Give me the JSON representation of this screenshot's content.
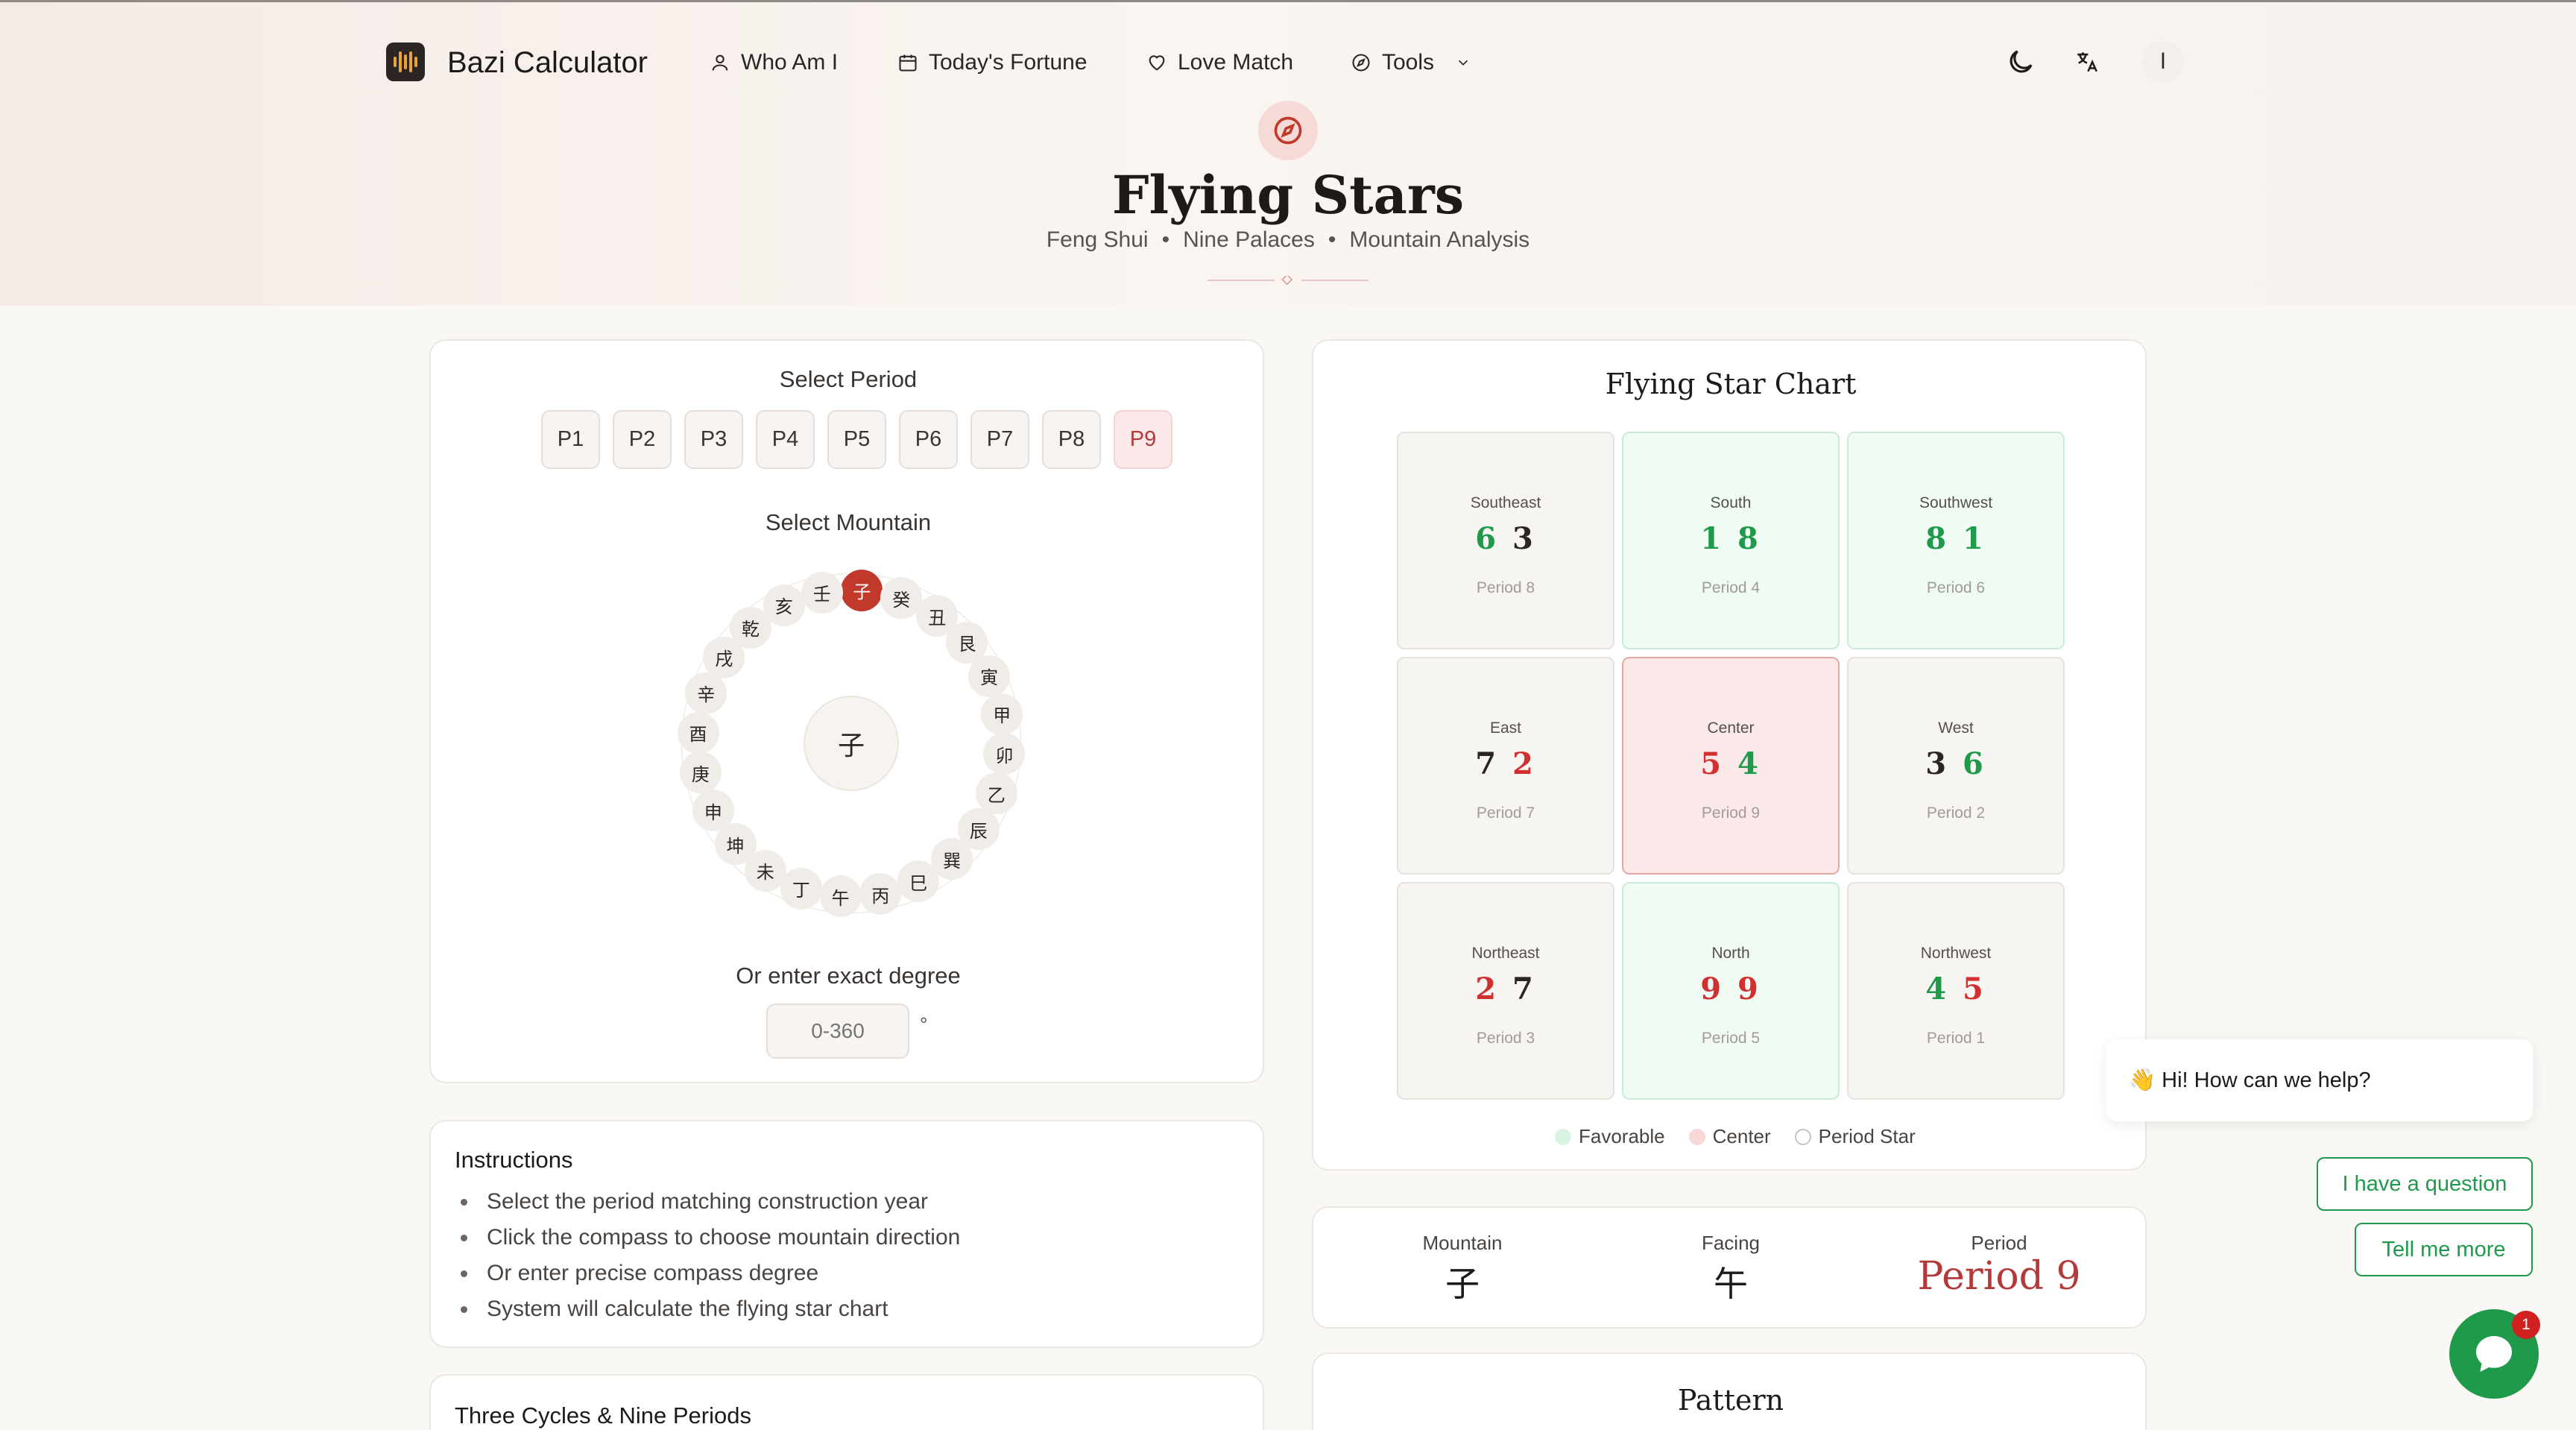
{
  "nav": {
    "brand": "Bazi Calculator",
    "items": [
      {
        "label": "Who Am I",
        "icon": "user-icon"
      },
      {
        "label": "Today's Fortune",
        "icon": "calendar-icon"
      },
      {
        "label": "Love Match",
        "icon": "heart-icon"
      },
      {
        "label": "Tools",
        "icon": "compass-icon"
      }
    ],
    "avatar_initial": "l"
  },
  "hero": {
    "title": "Flying Stars",
    "subtitle": [
      "Feng Shui",
      "Nine Palaces",
      "Mountain Analysis"
    ],
    "separator": "•"
  },
  "period_select": {
    "label": "Select Period",
    "options": [
      "P1",
      "P2",
      "P3",
      "P4",
      "P5",
      "P6",
      "P7",
      "P8",
      "P9"
    ],
    "selected": "P9"
  },
  "mountain_select": {
    "label": "Select Mountain",
    "mountains": [
      "子",
      "癸",
      "丑",
      "艮",
      "寅",
      "甲",
      "卯",
      "乙",
      "辰",
      "巽",
      "巳",
      "丙",
      "午",
      "丁",
      "未",
      "坤",
      "申",
      "庚",
      "酉",
      "辛",
      "戌",
      "乾",
      "亥",
      "壬"
    ],
    "selected": "子",
    "center": "子"
  },
  "degree": {
    "label": "Or enter exact degree",
    "placeholder": "0-360",
    "unit": "°"
  },
  "instructions": {
    "title": "Instructions",
    "items": [
      "Select the period matching construction year",
      "Click the compass to choose mountain direction",
      "Or enter precise compass degree",
      "System will calculate the flying star chart"
    ]
  },
  "cycles": {
    "title": "Three Cycles & Nine Periods"
  },
  "chart": {
    "title": "Flying Star Chart",
    "cells": [
      {
        "dir": "Southeast",
        "a": "6",
        "b": "3",
        "period": "Period 8",
        "type": "normal",
        "ca": "g",
        "cb": "k"
      },
      {
        "dir": "South",
        "a": "1",
        "b": "8",
        "period": "Period 4",
        "type": "fav",
        "ca": "g",
        "cb": "g"
      },
      {
        "dir": "Southwest",
        "a": "8",
        "b": "1",
        "period": "Period 6",
        "type": "fav",
        "ca": "g",
        "cb": "g"
      },
      {
        "dir": "East",
        "a": "7",
        "b": "2",
        "period": "Period 7",
        "type": "normal",
        "ca": "k",
        "cb": "r"
      },
      {
        "dir": "Center",
        "a": "5",
        "b": "4",
        "period": "Period 9",
        "type": "ctr",
        "ca": "r",
        "cb": "g"
      },
      {
        "dir": "West",
        "a": "3",
        "b": "6",
        "period": "Period 2",
        "type": "normal",
        "ca": "k",
        "cb": "g"
      },
      {
        "dir": "Northeast",
        "a": "2",
        "b": "7",
        "period": "Period 3",
        "type": "normal",
        "ca": "r",
        "cb": "k"
      },
      {
        "dir": "North",
        "a": "9",
        "b": "9",
        "period": "Period 5",
        "type": "fav",
        "ca": "r",
        "cb": "r"
      },
      {
        "dir": "Northwest",
        "a": "4",
        "b": "5",
        "period": "Period 1",
        "type": "normal",
        "ca": "g",
        "cb": "r"
      }
    ],
    "legend": [
      {
        "label": "Favorable",
        "color": "#d9f4e2"
      },
      {
        "label": "Center",
        "color": "#f8d7d7"
      },
      {
        "label": "Period Star",
        "color": "#ffffff"
      }
    ]
  },
  "summary": {
    "mountain_label": "Mountain",
    "mountain_value": "子",
    "facing_label": "Facing",
    "facing_value": "午",
    "period_label": "Period",
    "period_value": "Period 9"
  },
  "pattern": {
    "title": "Pattern"
  },
  "chat": {
    "greeting": "👋 Hi! How can we help?",
    "btn1": "I have a question",
    "btn2": "Tell me more",
    "badge": "1"
  },
  "colors": {
    "accent": "#c0392b",
    "favorable": "#1f9a4a",
    "unfavorable": "#d03030"
  }
}
